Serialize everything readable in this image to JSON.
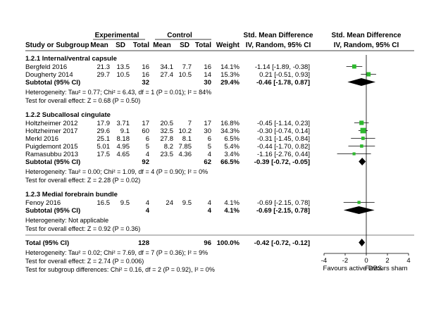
{
  "chart_data": {
    "type": "forest",
    "header": {
      "experimental": "Experimental",
      "control": "Control",
      "smd_group": "Std. Mean Difference",
      "plot_group": "Std. Mean Difference",
      "study": "Study or Subgroup",
      "mean": "Mean",
      "sd": "SD",
      "total": "Total",
      "weight": "Weight",
      "smd_method": "IV, Random, 95% CI",
      "plot_method": "IV, Random, 95% CI"
    },
    "subgroups": [
      {
        "title": "1.2.1 Internal/ventral capsule",
        "studies": [
          {
            "name": "Bergfeld 2016",
            "e_mean": "21.3",
            "e_sd": "13.5",
            "e_total": "16",
            "c_mean": "34.1",
            "c_sd": "7.7",
            "c_total": "16",
            "weight": "14.1%",
            "ci_text": "-1.14 [-1.89, -0.38]",
            "smd": -1.14,
            "lo": -1.89,
            "hi": -0.38,
            "w": 14.1
          },
          {
            "name": "Dougherty 2014",
            "e_mean": "29.7",
            "e_sd": "10.5",
            "e_total": "16",
            "c_mean": "27.4",
            "c_sd": "10.5",
            "c_total": "14",
            "weight": "15.3%",
            "ci_text": "0.21 [-0.51, 0.93]",
            "smd": 0.21,
            "lo": -0.51,
            "hi": 0.93,
            "w": 15.3
          }
        ],
        "subtotal": {
          "label": "Subtotal (95% CI)",
          "e_total": "32",
          "c_total": "30",
          "weight": "29.4%",
          "ci_text": "-0.46 [-1.78, 0.87]",
          "smd": -0.46,
          "lo": -1.78,
          "hi": 0.87
        },
        "heterogeneity": "Heterogeneity: Tau² = 0.77; Chi² = 6.43, df = 1 (P = 0.01); I² = 84%",
        "overall_effect": "Test for overall effect: Z = 0.68 (P = 0.50)"
      },
      {
        "title": "1.2.2 Subcallosal cingulate",
        "studies": [
          {
            "name": "Holtzheimer 2012",
            "e_mean": "17.9",
            "e_sd": "3.71",
            "e_total": "17",
            "c_mean": "20.5",
            "c_sd": "7",
            "c_total": "17",
            "weight": "16.8%",
            "ci_text": "-0.45 [-1.14, 0.23]",
            "smd": -0.45,
            "lo": -1.14,
            "hi": 0.23,
            "w": 16.8
          },
          {
            "name": "Holtzheimer 2017",
            "e_mean": "29.6",
            "e_sd": "9.1",
            "e_total": "60",
            "c_mean": "32.5",
            "c_sd": "10.2",
            "c_total": "30",
            "weight": "34.3%",
            "ci_text": "-0.30 [-0.74, 0.14]",
            "smd": -0.3,
            "lo": -0.74,
            "hi": 0.14,
            "w": 34.3
          },
          {
            "name": "Merkl 2016",
            "e_mean": "25.1",
            "e_sd": "8.18",
            "e_total": "6",
            "c_mean": "27.8",
            "c_sd": "8.1",
            "c_total": "6",
            "weight": "6.5%",
            "ci_text": "-0.31 [-1.45, 0.84]",
            "smd": -0.31,
            "lo": -1.45,
            "hi": 0.84,
            "w": 6.5
          },
          {
            "name": "Puigdemont 2015",
            "e_mean": "5.01",
            "e_sd": "4.95",
            "e_total": "5",
            "c_mean": "8.2",
            "c_sd": "7.85",
            "c_total": "5",
            "weight": "5.4%",
            "ci_text": "-0.44 [-1.70, 0.82]",
            "smd": -0.44,
            "lo": -1.7,
            "hi": 0.82,
            "w": 5.4
          },
          {
            "name": "Ramasubbu 2013",
            "e_mean": "17.5",
            "e_sd": "4.65",
            "e_total": "4",
            "c_mean": "23.5",
            "c_sd": "4.36",
            "c_total": "4",
            "weight": "3.4%",
            "ci_text": "-1.16 [-2.76, 0.44]",
            "smd": -1.16,
            "lo": -2.76,
            "hi": 0.44,
            "w": 3.4
          }
        ],
        "subtotal": {
          "label": "Subtotal (95% CI)",
          "e_total": "92",
          "c_total": "62",
          "weight": "66.5%",
          "ci_text": "-0.39 [-0.72, -0.05]",
          "smd": -0.39,
          "lo": -0.72,
          "hi": -0.05
        },
        "heterogeneity": "Heterogeneity: Tau² = 0.00; Chi² = 1.09, df = 4 (P = 0.90); I² = 0%",
        "overall_effect": "Test for overall effect: Z = 2.28 (P = 0.02)"
      },
      {
        "title": "1.2.3 Medial forebrain bundle",
        "studies": [
          {
            "name": "Fenoy 2016",
            "e_mean": "16.5",
            "e_sd": "9.5",
            "e_total": "4",
            "c_mean": "24",
            "c_sd": "9.5",
            "c_total": "4",
            "weight": "4.1%",
            "ci_text": "-0.69 [-2.15, 0.78]",
            "smd": -0.69,
            "lo": -2.15,
            "hi": 0.78,
            "w": 4.1
          }
        ],
        "subtotal": {
          "label": "Subtotal (95% CI)",
          "e_total": "4",
          "c_total": "4",
          "weight": "4.1%",
          "ci_text": "-0.69 [-2.15, 0.78]",
          "smd": -0.69,
          "lo": -2.15,
          "hi": 0.78
        },
        "heterogeneity": "Heterogeneity: Not applicable",
        "overall_effect": "Test for overall effect: Z = 0.92 (P = 0.36)"
      }
    ],
    "total": {
      "label": "Total (95% CI)",
      "e_total": "128",
      "c_total": "96",
      "weight": "100.0%",
      "ci_text": "-0.42 [-0.72, -0.12]",
      "smd": -0.42,
      "lo": -0.72,
      "hi": -0.12
    },
    "total_heterogeneity": "Heterogeneity: Tau² = 0.02; Chi² = 7.69, df = 7 (P = 0.36); I² = 9%",
    "total_overall_effect": "Test for overall effect: Z = 2.74 (P = 0.006)",
    "subgroup_differences": "Test for subgroup differences: Chi² = 0.16, df = 2 (P = 0.92), I² = 0%",
    "axis": {
      "xlim": [
        -4,
        4
      ],
      "ticks": [
        -4,
        -2,
        0,
        2,
        4
      ],
      "tick_labels": [
        "-4",
        "-2",
        "0",
        "2",
        "4"
      ],
      "favours_left": "Favours active DBS",
      "favours_right": "Favours sham"
    },
    "colors": {
      "study_marker": "#2eb82e",
      "summary_diamond": "#000000",
      "lines": "#000000"
    }
  }
}
